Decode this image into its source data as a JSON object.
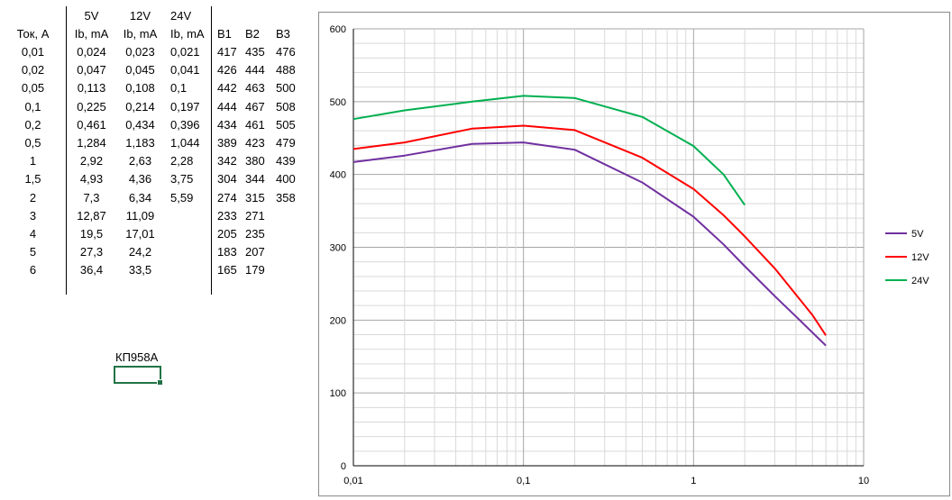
{
  "sheet": {
    "header_row1": [
      "",
      "5V",
      "12V",
      "24V"
    ],
    "header_row2": [
      "Ток, А",
      "Ib, mA",
      "Ib, mA",
      "Ib, mA",
      "B1",
      "B2",
      "B3"
    ],
    "rows": [
      [
        "0,01",
        "0,024",
        "0,023",
        "0,021",
        "417",
        "435",
        "476"
      ],
      [
        "0,02",
        "0,047",
        "0,045",
        "0,041",
        "426",
        "444",
        "488"
      ],
      [
        "0,05",
        "0,113",
        "0,108",
        "0,1",
        "442",
        "463",
        "500"
      ],
      [
        "0,1",
        "0,225",
        "0,214",
        "0,197",
        "444",
        "467",
        "508"
      ],
      [
        "0,2",
        "0,461",
        "0,434",
        "0,396",
        "434",
        "461",
        "505"
      ],
      [
        "0,5",
        "1,284",
        "1,183",
        "1,044",
        "389",
        "423",
        "479"
      ],
      [
        "1",
        "2,92",
        "2,63",
        "2,28",
        "342",
        "380",
        "439"
      ],
      [
        "1,5",
        "4,93",
        "4,36",
        "3,75",
        "304",
        "344",
        "400"
      ],
      [
        "2",
        "7,3",
        "6,34",
        "5,59",
        "274",
        "315",
        "358"
      ],
      [
        "3",
        "12,87",
        "11,09",
        "",
        "233",
        "271",
        ""
      ],
      [
        "4",
        "19,5",
        "17,01",
        "",
        "205",
        "235",
        ""
      ],
      [
        "5",
        "27,3",
        "24,2",
        "",
        "183",
        "207",
        ""
      ],
      [
        "6",
        "36,4",
        "33,5",
        "",
        "165",
        "179",
        ""
      ]
    ],
    "note": "КП958А"
  },
  "chart_data": {
    "type": "line",
    "x_scale": "log",
    "xlim": [
      0.01,
      10
    ],
    "ylim": [
      0,
      600
    ],
    "x_tick_labels": [
      "0,01",
      "0,1",
      "1",
      "10"
    ],
    "y_tick_labels": [
      "0",
      "100",
      "200",
      "300",
      "400",
      "500",
      "600"
    ],
    "grid": true,
    "legend_position": "right",
    "series": [
      {
        "name": "5V",
        "color": "#7030a0",
        "x": [
          0.01,
          0.02,
          0.05,
          0.1,
          0.2,
          0.5,
          1,
          1.5,
          2,
          3,
          4,
          5,
          6
        ],
        "y": [
          417,
          426,
          442,
          444,
          434,
          389,
          342,
          304,
          274,
          233,
          205,
          183,
          165
        ]
      },
      {
        "name": "12V",
        "color": "#ff0000",
        "x": [
          0.01,
          0.02,
          0.05,
          0.1,
          0.2,
          0.5,
          1,
          1.5,
          2,
          3,
          4,
          5,
          6
        ],
        "y": [
          435,
          444,
          463,
          467,
          461,
          423,
          380,
          344,
          315,
          271,
          235,
          207,
          179
        ]
      },
      {
        "name": "24V",
        "color": "#00b050",
        "x": [
          0.01,
          0.02,
          0.05,
          0.1,
          0.2,
          0.5,
          1,
          1.5,
          2
        ],
        "y": [
          476,
          488,
          500,
          508,
          505,
          479,
          439,
          400,
          358
        ]
      }
    ]
  }
}
